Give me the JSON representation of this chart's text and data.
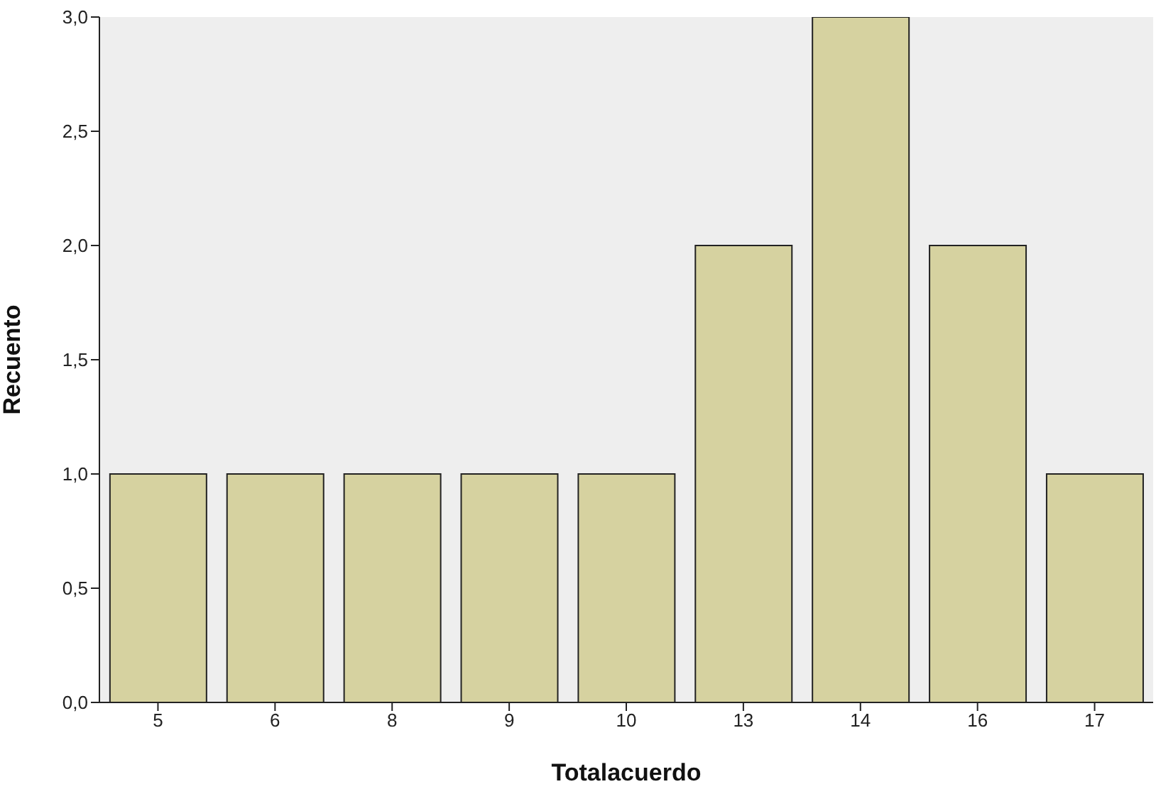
{
  "chart_data": {
    "type": "bar",
    "xlabel": "Totalacuerdo",
    "ylabel": "Recuento",
    "categories": [
      "5",
      "6",
      "8",
      "9",
      "10",
      "13",
      "14",
      "16",
      "17"
    ],
    "values": [
      1,
      1,
      1,
      1,
      1,
      2,
      3,
      2,
      1
    ],
    "color": "#d6d2a0",
    "ylim": [
      0,
      3
    ],
    "yticks": [
      {
        "value": 0,
        "label": "0,0"
      },
      {
        "value": 0.5,
        "label": "0,5"
      },
      {
        "value": 1,
        "label": "1,0"
      },
      {
        "value": 1.5,
        "label": "1,5"
      },
      {
        "value": 2,
        "label": "2,0"
      },
      {
        "value": 2.5,
        "label": "2,5"
      },
      {
        "value": 3,
        "label": "3,0"
      }
    ]
  }
}
